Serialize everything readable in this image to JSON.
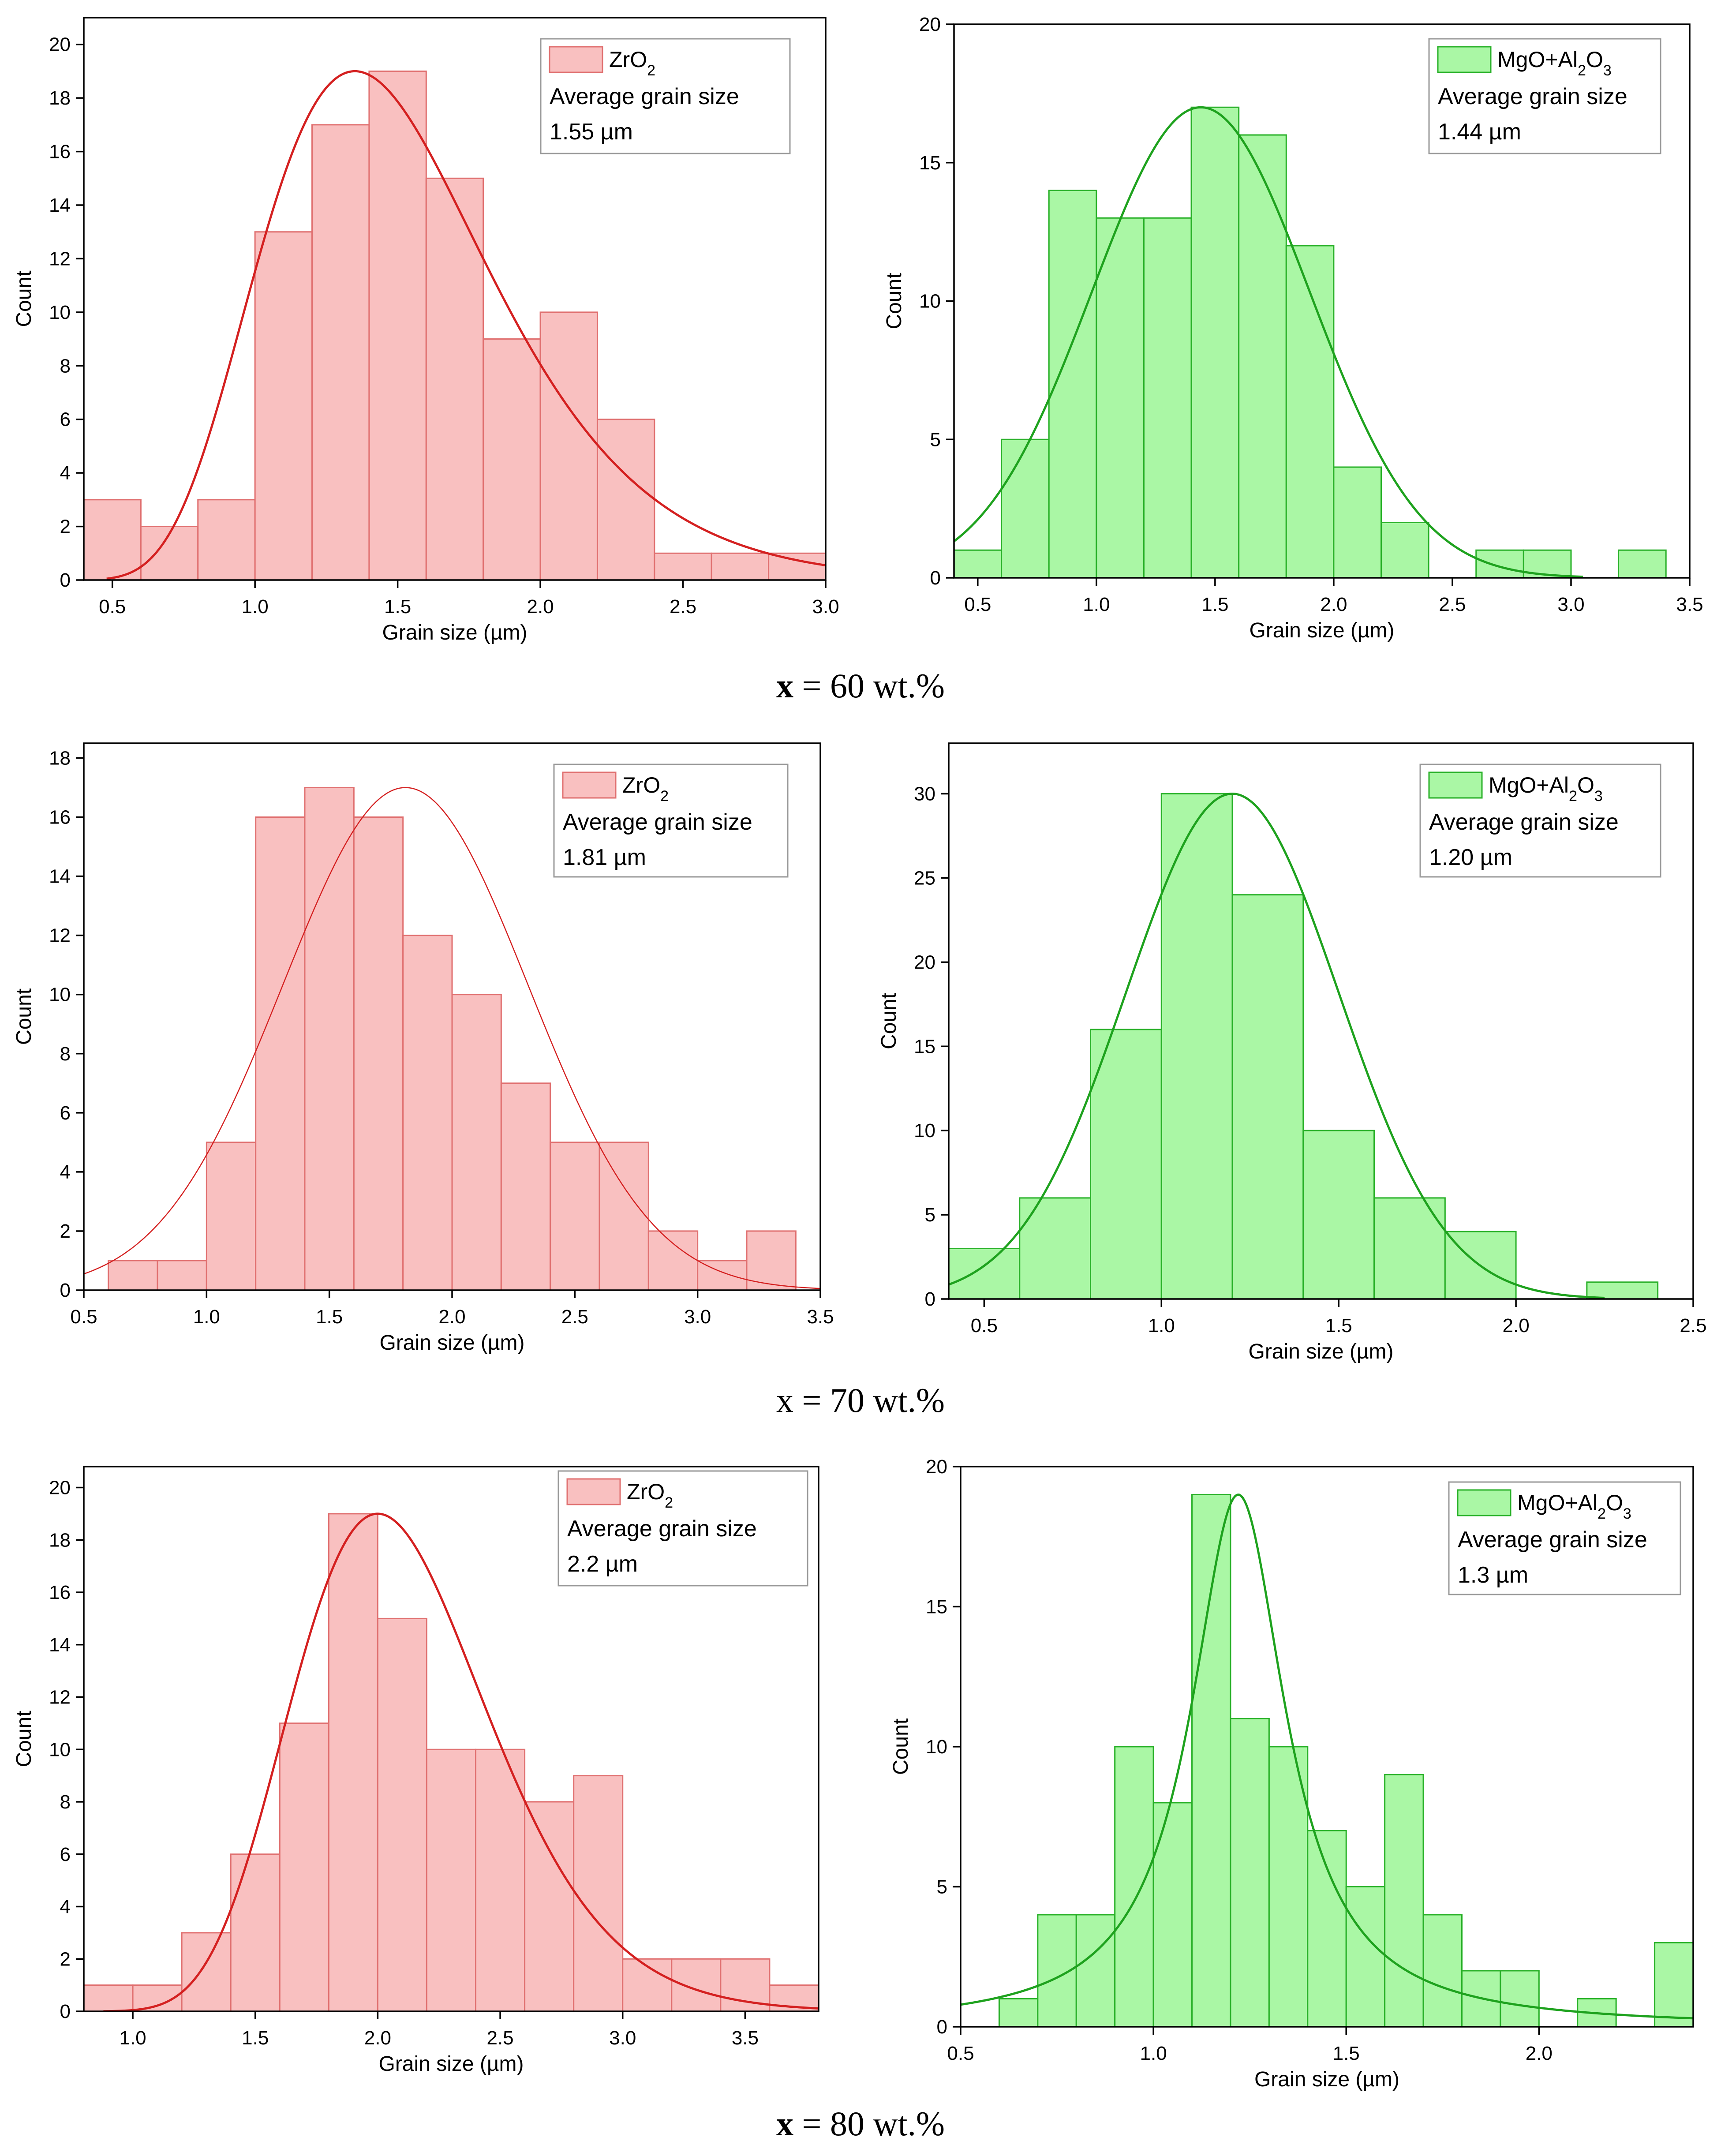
{
  "page": {
    "row_labels": [
      {
        "var": "x",
        "rest": " = 60 wt.%"
      },
      {
        "var": "x",
        "rest": " = 70 wt.%"
      },
      {
        "var": "x",
        "rest": " = 80 wt.%"
      }
    ]
  },
  "colors": {
    "zro2_fill": "#f9c0c0",
    "zro2_edge": "#e07070",
    "zro2_curve": "#d42020",
    "mgo_fill": "#aaf7a5",
    "mgo_edge": "#28b028",
    "mgo_curve": "#1ea21e"
  },
  "chart_data": [
    {
      "id": "zro2-60",
      "type": "bar",
      "series_kind": "zro2",
      "ylabel": "Count",
      "xlabel": "Grain size (µm)",
      "xlim": [
        0.4,
        3.0
      ],
      "ylim": [
        0,
        21
      ],
      "xticks": [
        "0.5",
        "1.0",
        "1.5",
        "2.0",
        "2.5",
        "3.0"
      ],
      "xtick_values": [
        0.5,
        1.0,
        1.5,
        2.0,
        2.5,
        3.0
      ],
      "yticks": [
        "0",
        "2",
        "4",
        "6",
        "8",
        "10",
        "12",
        "14",
        "16",
        "18",
        "20"
      ],
      "ytick_values": [
        0,
        2,
        4,
        6,
        8,
        10,
        12,
        14,
        16,
        18,
        20
      ],
      "bin_width": 0.2,
      "bins": [
        0.4,
        0.6,
        0.8,
        1.0,
        1.2,
        1.4,
        1.6,
        1.8,
        2.0,
        2.2,
        2.4,
        2.6,
        2.8
      ],
      "counts": [
        3,
        2,
        3,
        13,
        17,
        19,
        15,
        9,
        10,
        6,
        1,
        1,
        1
      ],
      "fit": {
        "kind": "lognormal",
        "peak": 19,
        "mode": 1.35,
        "s": 0.3,
        "x_start": 0.48,
        "x_end": 3.0,
        "stroke": 5
      },
      "legend": {
        "name_main": "ZrO",
        "name_sub": "2",
        "name_tail": "",
        "line2": "Average grain size",
        "line3": "1.55 µm"
      }
    },
    {
      "id": "mgo-60",
      "type": "bar",
      "series_kind": "mgo",
      "ylabel": "Count",
      "xlabel": "Grain size (µm)",
      "xlim": [
        0.4,
        3.5
      ],
      "ylim": [
        0,
        20
      ],
      "xticks": [
        "0.5",
        "1.0",
        "1.5",
        "2.0",
        "2.5",
        "3.0",
        "3.5"
      ],
      "xtick_values": [
        0.5,
        1.0,
        1.5,
        2.0,
        2.5,
        3.0,
        3.5
      ],
      "yticks": [
        "0",
        "5",
        "10",
        "15",
        "20"
      ],
      "ytick_values": [
        0,
        5,
        10,
        15,
        20
      ],
      "bin_width": 0.2,
      "bins": [
        0.4,
        0.6,
        0.8,
        1.0,
        1.2,
        1.4,
        1.6,
        1.8,
        2.0,
        2.2,
        2.4,
        2.6,
        2.8,
        3.0,
        3.2
      ],
      "counts": [
        1,
        5,
        14,
        13,
        13,
        17,
        16,
        12,
        4,
        2,
        0,
        1,
        1,
        0,
        1
      ],
      "fit": {
        "kind": "gaussian",
        "peak": 17,
        "mean": 1.44,
        "sd": 0.46,
        "x_start": 0.4,
        "x_end": 3.05,
        "stroke": 5
      },
      "legend": {
        "name_main": "MgO+Al",
        "name_sub": "2",
        "name_tail": "O",
        "name_sub2": "3",
        "line2": "Average grain size",
        "line3": "1.44 µm"
      }
    },
    {
      "id": "zro2-70",
      "type": "bar",
      "series_kind": "zro2",
      "ylabel": "Count",
      "xlabel": "Grain size (µm)",
      "xlim": [
        0.5,
        3.5
      ],
      "ylim": [
        0,
        18.5
      ],
      "xticks": [
        "0.5",
        "1.0",
        "1.5",
        "2.0",
        "2.5",
        "3.0",
        "3.5"
      ],
      "xtick_values": [
        0.5,
        1.0,
        1.5,
        2.0,
        2.5,
        3.0,
        3.5
      ],
      "yticks": [
        "0",
        "2",
        "4",
        "6",
        "8",
        "10",
        "12",
        "14",
        "16",
        "18"
      ],
      "ytick_values": [
        0,
        2,
        4,
        6,
        8,
        10,
        12,
        14,
        16,
        18
      ],
      "bin_width": 0.2,
      "bins": [
        0.6,
        0.8,
        1.0,
        1.2,
        1.4,
        1.6,
        1.8,
        2.0,
        2.2,
        2.4,
        2.6,
        2.8,
        3.0,
        3.2
      ],
      "counts": [
        1,
        1,
        5,
        16,
        17,
        16,
        12,
        10,
        7,
        5,
        5,
        2,
        1,
        2
      ],
      "fit": {
        "kind": "gaussian",
        "peak": 17,
        "mean": 1.81,
        "sd": 0.5,
        "x_start": 0.5,
        "x_end": 3.5,
        "stroke": 2.5
      },
      "legend": {
        "name_main": "ZrO",
        "name_sub": "2",
        "name_tail": "",
        "line2": "Average grain size",
        "line3": "1.81 µm"
      }
    },
    {
      "id": "mgo-70",
      "type": "bar",
      "series_kind": "mgo",
      "ylabel": "Count",
      "xlabel": "Grain size (µm)",
      "xlim": [
        0.4,
        2.5
      ],
      "ylim": [
        0,
        33
      ],
      "xticks": [
        "0.5",
        "1.0",
        "1.5",
        "2.0",
        "2.5"
      ],
      "xtick_values": [
        0.5,
        1.0,
        1.5,
        2.0,
        2.5
      ],
      "yticks": [
        "0",
        "5",
        "10",
        "15",
        "20",
        "25",
        "30"
      ],
      "ytick_values": [
        0,
        5,
        10,
        15,
        20,
        25,
        30
      ],
      "bin_width": 0.2,
      "bins": [
        0.4,
        0.6,
        0.8,
        1.0,
        1.2,
        1.4,
        1.6,
        1.8,
        2.0,
        2.2
      ],
      "counts": [
        3,
        6,
        16,
        30,
        24,
        10,
        6,
        4,
        0,
        1
      ],
      "fit": {
        "kind": "gaussian",
        "peak": 30,
        "mean": 1.2,
        "sd": 0.3,
        "x_start": 0.4,
        "x_end": 2.25,
        "stroke": 5
      },
      "legend": {
        "name_main": "MgO+Al",
        "name_sub": "2",
        "name_tail": "O",
        "name_sub2": "3",
        "line2": "Average grain size",
        "line3": "1.20 µm"
      }
    },
    {
      "id": "zro2-80",
      "type": "bar",
      "series_kind": "zro2",
      "ylabel": "Count",
      "xlabel": "Grain size (µm)",
      "xlim": [
        0.8,
        3.8
      ],
      "ylim": [
        0,
        20.8
      ],
      "xticks": [
        "1.0",
        "1.5",
        "2.0",
        "2.5",
        "3.0",
        "3.5"
      ],
      "xtick_values": [
        1.0,
        1.5,
        2.0,
        2.5,
        3.0,
        3.5
      ],
      "yticks": [
        "0",
        "2",
        "4",
        "6",
        "8",
        "10",
        "12",
        "14",
        "16",
        "18",
        "20"
      ],
      "ytick_values": [
        0,
        2,
        4,
        6,
        8,
        10,
        12,
        14,
        16,
        18,
        20
      ],
      "bin_width": 0.2,
      "bins": [
        0.8,
        1.0,
        1.2,
        1.4,
        1.6,
        1.8,
        2.0,
        2.2,
        2.4,
        2.6,
        2.8,
        3.0,
        3.2,
        3.4,
        3.6
      ],
      "counts": [
        1,
        1,
        3,
        6,
        11,
        19,
        15,
        10,
        10,
        8,
        9,
        2,
        2,
        2,
        1
      ],
      "fit": {
        "kind": "lognormal",
        "peak": 19,
        "mode": 2.0,
        "s": 0.2,
        "x_start": 0.88,
        "x_end": 3.8,
        "stroke": 5
      },
      "legend": {
        "name_main": "ZrO",
        "name_sub": "2",
        "name_tail": "",
        "line2": "Average grain size",
        "line3": "2.2 µm"
      }
    },
    {
      "id": "mgo-80",
      "type": "bar",
      "series_kind": "mgo",
      "ylabel": "Count",
      "xlabel": "Grain size (µm)",
      "xlim": [
        0.5,
        2.4
      ],
      "ylim": [
        0,
        20
      ],
      "xticks": [
        "0.5",
        "1.0",
        "1.5",
        "2.0"
      ],
      "xtick_values": [
        0.5,
        1.0,
        1.5,
        2.0
      ],
      "yticks": [
        "0",
        "5",
        "10",
        "15",
        "20"
      ],
      "ytick_values": [
        0,
        5,
        10,
        15,
        20
      ],
      "bin_width": 0.1,
      "bins": [
        0.6,
        0.7,
        0.8,
        0.9,
        1.0,
        1.1,
        1.2,
        1.3,
        1.4,
        1.5,
        1.6,
        1.7,
        1.8,
        1.9,
        2.0,
        2.1,
        2.2,
        2.3
      ],
      "counts": [
        1,
        4,
        4,
        10,
        8,
        19,
        11,
        10,
        7,
        5,
        9,
        4,
        2,
        2,
        0,
        1,
        0,
        3
      ],
      "fit": {
        "kind": "lorentzian",
        "peak": 19,
        "center": 1.22,
        "gamma": 0.15,
        "x_start": 0.5,
        "x_end": 2.4,
        "stroke": 5
      },
      "legend": {
        "name_main": "MgO+Al",
        "name_sub": "2",
        "name_tail": "O",
        "name_sub2": "3",
        "line2": "Average grain size",
        "line3": "1.3 µm"
      }
    }
  ]
}
